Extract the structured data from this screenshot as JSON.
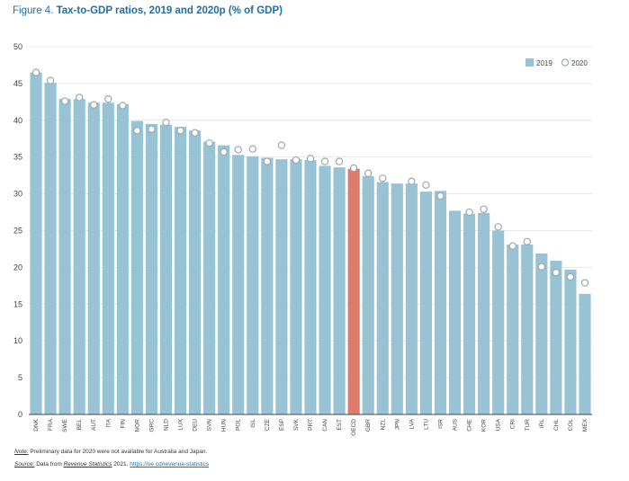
{
  "figure": {
    "label": "Figure 4.",
    "title": "Tax-to-GDP ratios, 2019 and 2020p (% of GDP)"
  },
  "colors": {
    "bar": "#98c3d5",
    "highlight": "#de7b6c",
    "marker_fill": "#ffffff",
    "marker_stroke": "#9fa8ad",
    "title": "#1f6fa8",
    "grid": "#ffffff",
    "axis": "#444444"
  },
  "chart_data": {
    "type": "bar",
    "title": "Tax-to-GDP ratios, 2019 and 2020p (% of GDP)",
    "xlabel": "",
    "ylabel": "",
    "ylim": [
      0,
      50
    ],
    "yticks": [
      0,
      5,
      10,
      15,
      20,
      25,
      30,
      35,
      40,
      45,
      50
    ],
    "grid": true,
    "legend_position": "top-right",
    "highlight_category": "OECD",
    "categories": [
      "DNK",
      "FRA",
      "SWE",
      "BEL",
      "AUT",
      "ITA",
      "FIN",
      "NOR",
      "GRC",
      "NLD",
      "LUX",
      "DEU",
      "SVN",
      "HUN",
      "POL",
      "ISL",
      "CZE",
      "ESP",
      "SVK",
      "PRT",
      "CAN",
      "EST",
      "OECD",
      "GBR",
      "NZL",
      "JPN",
      "LVA",
      "LTU",
      "ISR",
      "AUS",
      "CHE",
      "KOR",
      "USA",
      "CRI",
      "TUR",
      "IRL",
      "CHL",
      "COL",
      "MEX"
    ],
    "series": [
      {
        "name": "2019",
        "kind": "bar",
        "values": [
          46.5,
          45.1,
          42.9,
          42.9,
          42.4,
          42.4,
          42.2,
          39.9,
          39.5,
          39.4,
          39.1,
          38.6,
          37.1,
          36.6,
          35.3,
          35.1,
          34.9,
          34.7,
          34.7,
          34.6,
          33.8,
          33.6,
          33.4,
          32.4,
          31.6,
          31.4,
          31.4,
          30.3,
          30.4,
          27.7,
          27.3,
          27.4,
          25.0,
          23.1,
          23.1,
          21.9,
          20.9,
          19.7,
          16.4
        ]
      },
      {
        "name": "2020",
        "kind": "marker",
        "values": [
          46.5,
          45.4,
          42.6,
          43.1,
          42.1,
          42.9,
          42.0,
          38.6,
          38.8,
          39.7,
          38.6,
          38.3,
          36.9,
          35.7,
          36.0,
          36.1,
          34.4,
          36.6,
          34.6,
          34.8,
          34.4,
          34.4,
          33.5,
          32.8,
          32.1,
          null,
          31.7,
          31.2,
          29.7,
          null,
          27.5,
          27.9,
          25.5,
          22.9,
          23.5,
          20.1,
          19.3,
          18.7,
          17.9
        ]
      }
    ]
  },
  "footer": {
    "note_label": "Note:",
    "note_text": " Preliminary data for 2020 were not available for Australia and Japan.",
    "source_label": "Source:",
    "source_text_1": " Data from ",
    "source_pub": "Revenue Statistics",
    "source_text_2": " 2021. ",
    "source_link": "https://oe.cd/revenue-statistics"
  }
}
